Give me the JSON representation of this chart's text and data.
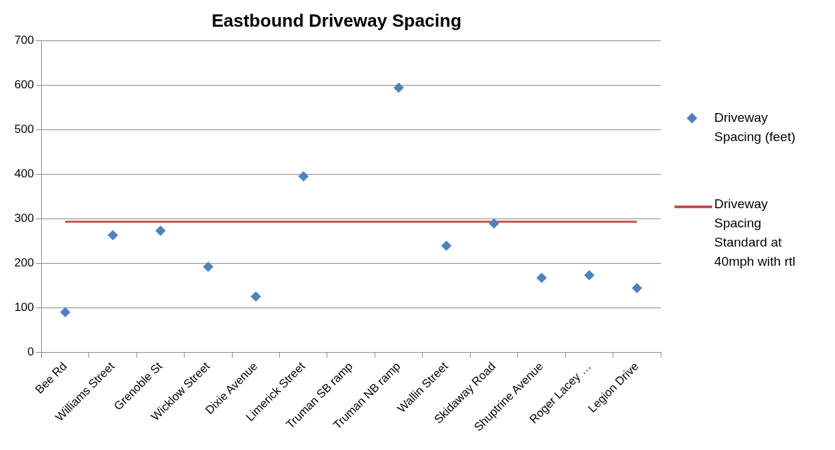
{
  "chart_data": {
    "type": "scatter",
    "title": "Eastbound Driveway Spacing",
    "categories": [
      "Bee Rd",
      "Williams Street",
      "Grenoble St",
      "Wicklow Street",
      "Dixie Avenue",
      "Limerick Street",
      "Truman SB ramp",
      "Truman NB ramp",
      "Wallin Street",
      "Skidaway Road",
      "Shuptrine Avenue",
      "Roger Lacey …",
      "Legion Drive"
    ],
    "series": [
      {
        "name": "Driveway Spacing (feet)",
        "type": "scatter",
        "color": "#4f81bd",
        "marker": "diamond",
        "values": [
          90,
          263,
          273,
          192,
          125,
          395,
          null,
          594,
          239,
          289,
          167,
          173,
          144
        ]
      },
      {
        "name": "Driveway Spacing Standard at 40mph with rtl",
        "type": "line",
        "color": "#c0504d",
        "marker": "none",
        "line_style": "solid",
        "values": [
          293,
          293,
          293,
          293,
          293,
          293,
          293,
          293,
          293,
          293,
          293,
          293,
          293
        ]
      }
    ],
    "ylim": [
      0,
      700
    ],
    "yticks": [
      0,
      100,
      200,
      300,
      400,
      500,
      600,
      700
    ],
    "grid": "y",
    "legend": "right"
  }
}
